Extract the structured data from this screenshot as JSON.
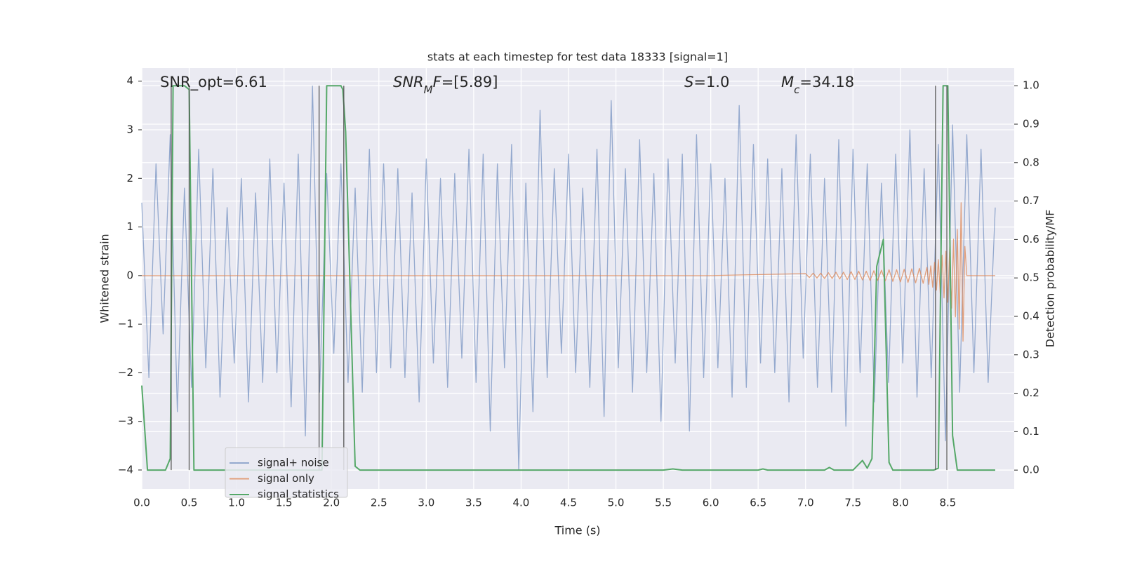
{
  "chart_data": {
    "type": "line",
    "title": "stats at each timestep for test data 18333 [signal=1]",
    "xlabel": "Time (s)",
    "ylabel": "Whitened strain",
    "y2label": "Detection probability/MF",
    "xlim": [
      0,
      9.2
    ],
    "ylim": [
      -4.39,
      4.27
    ],
    "y2lim": [
      -0.049,
      1.046
    ],
    "xticks": [
      {
        "value": 0,
        "label": "0.0"
      },
      0.5,
      {
        "value": 1,
        "label": "1.0"
      },
      1.5,
      {
        "value": 2,
        "label": "2.0"
      },
      2.5,
      {
        "value": 3,
        "label": "3.0"
      },
      3.5,
      {
        "value": 4,
        "label": "4.0"
      },
      4.5,
      {
        "value": 5,
        "label": "5.0"
      },
      5.5,
      {
        "value": 6,
        "label": "6.0"
      },
      6.5,
      {
        "value": 7,
        "label": "7.0"
      },
      7.5,
      {
        "value": 8,
        "label": "8.0"
      },
      8.5
    ],
    "yticks": [
      {
        "value": -4,
        "label": "−4"
      },
      {
        "value": -3,
        "label": "−3"
      },
      {
        "value": -2,
        "label": "−2"
      },
      {
        "value": -1,
        "label": "−1"
      },
      0,
      1,
      2,
      3,
      4
    ],
    "y2ticks": [
      {
        "value": 0,
        "label": "0.0"
      },
      0.1,
      0.2,
      0.3,
      0.4,
      0.5,
      0.6,
      0.7,
      0.8,
      0.9,
      {
        "value": 1,
        "label": "1.0"
      }
    ],
    "grid": true,
    "legend": "lower left",
    "annotations": [
      [
        {
          "text": "SNR_opt=6.61"
        }
      ],
      [
        {
          "text": "SNR",
          "italic": true
        },
        {
          "text": "M",
          "italic": true,
          "sub": true
        },
        {
          "text": "F",
          "italic": true
        },
        {
          "text": "=[5.89]"
        }
      ],
      [
        {
          "text": "S",
          "italic": true
        },
        {
          "text": "=1.0"
        }
      ],
      [
        {
          "text": "M",
          "italic": true
        },
        {
          "text": "c",
          "italic": true,
          "sub": true
        },
        {
          "text": "=34.18"
        }
      ]
    ],
    "vlines": {
      "color": "#555555",
      "x": [
        0.31,
        0.5,
        1.87,
        2.13,
        8.37,
        8.49
      ],
      "y2": [
        0,
        1
      ]
    },
    "series": [
      {
        "name": "signal+ noise",
        "color": "#4c72b0",
        "opacity": 0.55,
        "x": [
          0,
          0.075,
          0.15,
          0.225,
          0.3,
          0.375,
          0.45,
          0.525,
          0.6,
          0.675,
          0.75,
          0.825,
          0.9,
          0.975,
          1.05,
          1.125,
          1.2,
          1.275,
          1.35,
          1.425,
          1.5,
          1.575,
          1.65,
          1.725,
          1.8,
          1.875,
          1.95,
          2.025,
          2.1,
          2.175,
          2.25,
          2.325,
          2.4,
          2.475,
          2.55,
          2.625,
          2.7,
          2.775,
          2.85,
          2.925,
          3,
          3.075,
          3.15,
          3.225,
          3.3,
          3.375,
          3.45,
          3.525,
          3.6,
          3.675,
          3.75,
          3.825,
          3.9,
          3.975,
          4.05,
          4.125,
          4.2,
          4.275,
          4.35,
          4.425,
          4.5,
          4.575,
          4.65,
          4.725,
          4.8,
          4.875,
          4.95,
          5.025,
          5.1,
          5.175,
          5.25,
          5.325,
          5.4,
          5.475,
          5.55,
          5.625,
          5.7,
          5.775,
          5.85,
          5.925,
          6,
          6.075,
          6.15,
          6.225,
          6.3,
          6.375,
          6.45,
          6.525,
          6.6,
          6.675,
          6.75,
          6.825,
          6.9,
          6.975,
          7.05,
          7.125,
          7.2,
          7.275,
          7.35,
          7.425,
          7.5,
          7.575,
          7.65,
          7.725,
          7.8,
          7.875,
          7.95,
          8.025,
          8.1,
          8.175,
          8.25,
          8.325,
          8.4,
          8.475,
          8.55,
          8.625,
          8.7,
          8.775,
          8.85,
          8.925,
          9
        ],
        "values": [
          1.5,
          -2.1,
          2.3,
          -1.2,
          2.9,
          -2.8,
          1.8,
          -2.3,
          2.6,
          -1.9,
          2.2,
          -2.5,
          1.4,
          -1.8,
          2.0,
          -2.6,
          1.7,
          -2.2,
          2.4,
          -2.0,
          1.9,
          -2.7,
          2.5,
          -3.3,
          3.9,
          -2.4,
          2.1,
          -1.6,
          2.3,
          -2.2,
          1.8,
          -2.4,
          2.6,
          -2.0,
          2.3,
          -1.9,
          2.2,
          -2.1,
          1.7,
          -2.6,
          2.4,
          -1.8,
          2.0,
          -2.3,
          2.1,
          -1.7,
          2.6,
          -2.2,
          2.5,
          -3.2,
          2.3,
          -1.9,
          2.7,
          -4.0,
          1.9,
          -2.8,
          3.4,
          -2.1,
          2.2,
          -1.6,
          2.5,
          -2.0,
          1.8,
          -2.3,
          2.6,
          -2.9,
          3.6,
          -1.9,
          2.2,
          -2.4,
          2.8,
          -2.0,
          2.1,
          -3.0,
          2.4,
          -1.8,
          2.5,
          -3.2,
          2.9,
          -2.1,
          2.3,
          -1.9,
          2.0,
          -2.5,
          3.5,
          -2.3,
          2.7,
          -1.8,
          2.4,
          -2.0,
          2.2,
          -2.6,
          2.9,
          -1.7,
          2.5,
          -2.3,
          2.0,
          -2.4,
          2.8,
          -3.1,
          2.6,
          -2.0,
          2.3,
          -2.6,
          1.9,
          -2.2,
          2.5,
          -1.8,
          3.0,
          -2.5,
          2.2,
          -2.1,
          2.7,
          -3.4,
          3.1,
          -2.4,
          2.9,
          -2.0,
          2.6,
          -2.2,
          1.4
        ]
      },
      {
        "name": "signal only",
        "color": "#dd8452",
        "opacity": 0.75,
        "x": [
          0,
          6.0,
          7.0,
          7.04,
          7.08,
          7.12,
          7.16,
          7.2,
          7.24,
          7.28,
          7.32,
          7.36,
          7.4,
          7.44,
          7.48,
          7.52,
          7.56,
          7.6,
          7.64,
          7.68,
          7.72,
          7.76,
          7.8,
          7.84,
          7.88,
          7.92,
          7.96,
          8.0,
          8.04,
          8.08,
          8.12,
          8.16,
          8.2,
          8.24,
          8.28,
          8.3,
          8.32,
          8.34,
          8.36,
          8.38,
          8.4,
          8.42,
          8.44,
          8.46,
          8.48,
          8.5,
          8.52,
          8.54,
          8.56,
          8.58,
          8.6,
          8.62,
          8.64,
          8.66,
          8.68,
          8.7,
          9.0
        ],
        "values": [
          0,
          0,
          0.04,
          -0.04,
          0.05,
          -0.05,
          0.05,
          -0.06,
          0.06,
          -0.06,
          0.07,
          -0.07,
          0.07,
          -0.08,
          0.08,
          -0.08,
          0.09,
          -0.09,
          0.09,
          -0.1,
          0.1,
          -0.1,
          0.11,
          -0.11,
          0.12,
          -0.12,
          0.12,
          -0.13,
          0.13,
          -0.14,
          0.14,
          -0.15,
          0.15,
          -0.16,
          0.17,
          -0.18,
          0.2,
          -0.24,
          0.27,
          -0.3,
          0.33,
          -0.38,
          0.42,
          -0.46,
          0.5,
          -0.55,
          0.6,
          -0.67,
          0.75,
          -0.85,
          0.95,
          -1.1,
          1.5,
          -1.35,
          0.6,
          0,
          0
        ]
      },
      {
        "name": "signal statistics",
        "color": "#55a868",
        "opacity": 1,
        "axis": "y2",
        "x": [
          0,
          0.06,
          0.25,
          0.3,
          0.33,
          0.45,
          0.5,
          0.55,
          1.9,
          1.95,
          2.1,
          2.12,
          2.15,
          2.25,
          2.3,
          5.5,
          5.6,
          5.7,
          6.5,
          6.55,
          6.6,
          7.2,
          7.25,
          7.3,
          7.5,
          7.6,
          7.65,
          7.7,
          7.75,
          7.82,
          7.88,
          7.92,
          8.35,
          8.4,
          8.45,
          8.5,
          8.55,
          8.6,
          9.0
        ],
        "values": [
          0.22,
          0,
          0,
          0.03,
          1.0,
          1.0,
          0.99,
          0,
          0,
          1.0,
          1.0,
          0.99,
          0.88,
          0.01,
          0,
          0,
          0.003,
          0,
          0,
          0.003,
          0,
          0,
          0.007,
          0,
          0,
          0.025,
          0.005,
          0.03,
          0.53,
          0.6,
          0.02,
          0,
          0,
          0.005,
          1.0,
          1.0,
          0.09,
          0,
          0
        ]
      }
    ]
  }
}
